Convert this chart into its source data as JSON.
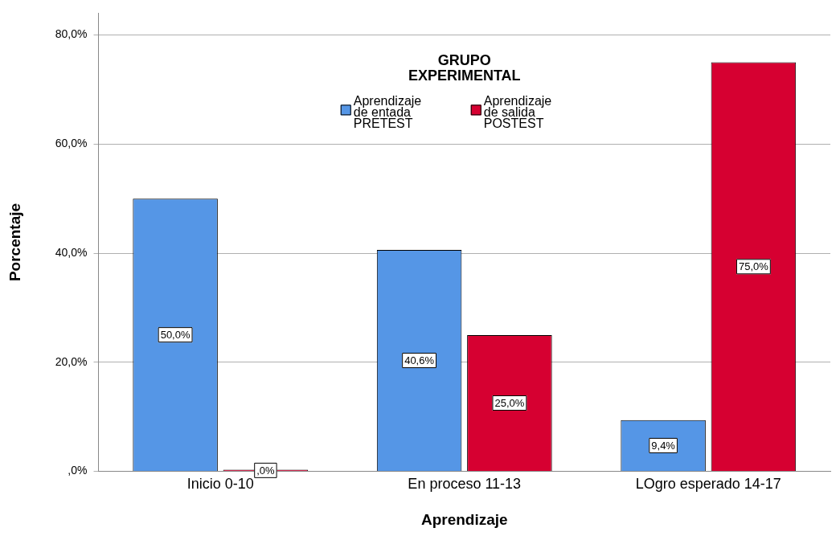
{
  "chart_data": {
    "type": "bar",
    "xlabel": "Aprendizaje",
    "ylabel": "Porcentaje",
    "legend_title": "GRUPO EXPERIMENTAL",
    "legend": "top",
    "grid": "y",
    "categories": [
      "Inicio 0-10",
      "En proceso 11-13",
      "LOgro esperado 14-17"
    ],
    "series": [
      {
        "name": "Aprendizaje de entada PRETEST",
        "color": "#5596e6",
        "values": [
          50,
          40.6,
          9.4
        ],
        "value_labels": [
          "50,0%",
          "40,6%",
          "9,4%"
        ]
      },
      {
        "name": "Aprendizaje de salida POSTEST",
        "color": "#d60031",
        "values": [
          0,
          25,
          75
        ],
        "value_labels": [
          ",0%",
          "25,0%",
          "75,0%"
        ]
      }
    ],
    "ylim": [
      0,
      84
    ],
    "yticks": [
      {
        "value": 0,
        "label": ",0%"
      },
      {
        "value": 20,
        "label": "20,0%"
      },
      {
        "value": 40,
        "label": "40,0%"
      },
      {
        "value": 60,
        "label": "60,0%"
      },
      {
        "value": 80,
        "label": "80,0%"
      }
    ]
  }
}
